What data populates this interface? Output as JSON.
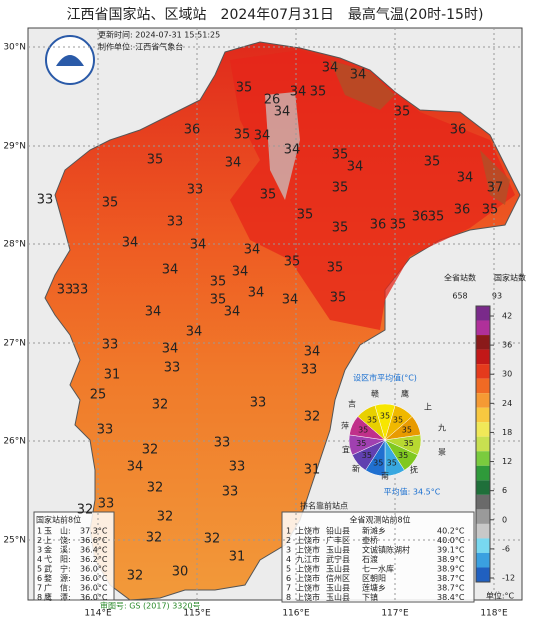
{
  "header": {
    "title": "江西省国家站、区域站　2024年07月31日　最高气温(20时-15时)",
    "update_time": "更新时间: 2024-07-31 15:51:25",
    "producer": "制作单位: 江西省气象台"
  },
  "lat_labels": [
    "30°N",
    "29°N",
    "28°N",
    "27°N",
    "26°N",
    "25°N"
  ],
  "lon_labels": [
    "114°E",
    "115°E",
    "116°E",
    "117°E",
    "118°E"
  ],
  "map_labels": [
    34,
    34,
    35,
    34,
    35,
    26,
    34,
    34,
    35,
    36,
    35,
    36,
    34,
    35,
    35,
    34,
    34,
    35,
    33,
    35,
    35,
    34,
    37,
    33,
    35,
    33,
    35,
    35,
    36,
    35,
    36,
    35,
    36,
    35,
    34,
    34,
    34,
    35,
    34,
    34,
    35,
    33,
    33,
    35,
    35,
    34,
    34,
    35,
    34,
    34,
    34,
    33,
    34,
    34,
    31,
    33,
    33,
    25,
    32,
    33,
    33,
    32,
    32,
    33,
    34,
    32,
    33,
    33,
    32,
    33,
    32,
    31,
    32,
    32,
    31,
    32,
    30
  ],
  "colorbar": {
    "province_label": "全省站数",
    "province_count": "658",
    "national_label": "国家站数",
    "national_count": "93",
    "unit": "单位:°C",
    "ticks": [
      42,
      36,
      30,
      24,
      18,
      12,
      6,
      0,
      -6,
      -12
    ]
  },
  "pie": {
    "title": "设区市平均值(°C)",
    "cities": [
      "赣",
      "鹰",
      "上",
      "九",
      "景",
      "抚",
      "南",
      "新",
      "宜",
      "萍",
      "吉"
    ],
    "values": [
      35,
      35,
      35,
      35,
      35,
      35,
      35,
      35,
      35,
      35,
      35
    ],
    "average": "平均值: 34.5°C"
  },
  "national_table": {
    "title": "国家站前8位",
    "rows": [
      [
        "1",
        "玉　山:",
        "37.3°C"
      ],
      [
        "2",
        "上　饶:",
        "36.6°C"
      ],
      [
        "3",
        "金　溪:",
        "36.4°C"
      ],
      [
        "4",
        "弋　阳:",
        "36.2°C"
      ],
      [
        "5",
        "武　宁:",
        "36.0°C"
      ],
      [
        "6",
        "婺　源:",
        "36.0°C"
      ],
      [
        "7",
        "广　信:",
        "36.0°C"
      ],
      [
        "8",
        "鹰　潭:",
        "36.0°C"
      ]
    ]
  },
  "rank_legend": "排名靠前站点",
  "province_table": {
    "title": "全省观测站前8位",
    "rows": [
      [
        "1",
        "上饶市",
        "铅山县",
        "新滩乡",
        "40.2°C"
      ],
      [
        "2",
        "上饶市",
        "广丰区",
        "壶桥",
        "40.0°C"
      ],
      [
        "3",
        "上饶市",
        "玉山县",
        "文诚镇陈湖村",
        "39.1°C"
      ],
      [
        "4",
        "九江市",
        "武宁县",
        "石渡",
        "38.9°C"
      ],
      [
        "5",
        "上饶市",
        "玉山县",
        "七一水库",
        "38.9°C"
      ],
      [
        "6",
        "上饶市",
        "信州区",
        "区朝阳",
        "38.7°C"
      ],
      [
        "7",
        "上饶市",
        "玉山县",
        "莲塘乡",
        "38.7°C"
      ],
      [
        "8",
        "上饶市",
        "玉山县",
        "下镇",
        "38.4°C"
      ]
    ]
  },
  "approval": "审图号: GS (2017) 3320号"
}
